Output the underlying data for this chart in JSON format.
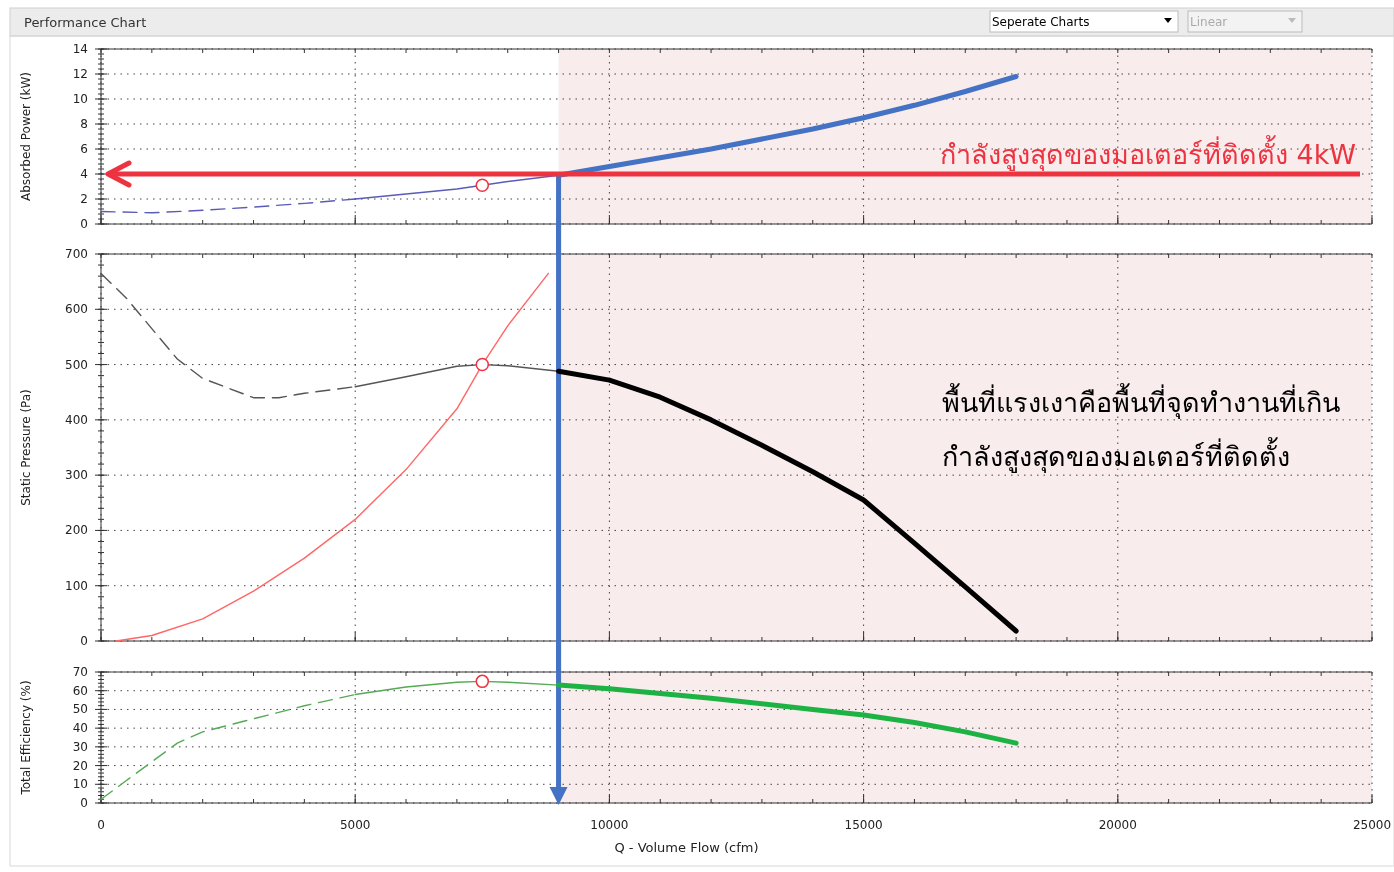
{
  "chart_data": [
    {
      "type": "line",
      "title": "Performance Chart",
      "annotations": [
        "Seperate Charts",
        "Linear"
      ],
      "ylabel": "Absorbed Power (kW)",
      "xlim": [
        0,
        25000
      ],
      "xticks": [
        0,
        5000,
        10000,
        15000,
        20000,
        25000
      ],
      "ylim": [
        0,
        14
      ],
      "yticks": [
        0,
        2,
        4,
        6,
        8,
        10,
        12,
        14
      ],
      "grid": true,
      "tick_labels": "y",
      "bands": [
        {
          "axis": "x",
          "from": 9000,
          "to": 25000,
          "color": "#f9ecec"
        }
      ],
      "ref_lines": [
        {
          "axis": "y",
          "value": 4,
          "label": "กำลังสูงสุดของมอเตอร์ที่ติดตั้ง 4kW",
          "color": "#ee3340"
        },
        {
          "axis": "x",
          "value": 9000,
          "color": "#4472c4"
        }
      ],
      "series": [
        {
          "color": "#5a5ab8",
          "line_style": "dashed",
          "x": [
            0,
            1000,
            2000,
            3000,
            4000,
            5000
          ],
          "values": [
            1.0,
            0.9,
            1.1,
            1.35,
            1.65,
            2.0
          ]
        },
        {
          "color": "#5a5ab8",
          "line_style": "solid",
          "x": [
            5000,
            6000,
            7000,
            7500,
            8000,
            9000
          ],
          "values": [
            2.0,
            2.4,
            2.8,
            3.1,
            3.4,
            3.9
          ]
        },
        {
          "color": "#4472c4",
          "line_style": "solid",
          "x": [
            9000,
            10000,
            12000,
            14000,
            15000,
            16000,
            17000,
            18000
          ],
          "values": [
            3.9,
            4.6,
            6.0,
            7.6,
            8.5,
            9.5,
            10.6,
            11.8
          ]
        },
        {
          "type": "scatter",
          "marker": "circle",
          "color": "#ee3340",
          "x": [
            7500
          ],
          "values": [
            3.1
          ]
        }
      ]
    },
    {
      "type": "line",
      "ylabel": "Static Pressure (Pa)",
      "annotations": [
        "พื้นที่แรงเงาคือพื้นที่จุดทำงานที่เกิน",
        "กำลังสูงสุดของมอเตอร์ที่ติดตั้ง"
      ],
      "xlim": [
        0,
        25000
      ],
      "xticks": [
        0,
        5000,
        10000,
        15000,
        20000,
        25000
      ],
      "ylim": [
        0,
        700
      ],
      "yticks": [
        0,
        100,
        200,
        300,
        400,
        500,
        600,
        700
      ],
      "grid": true,
      "tick_labels": "y",
      "bands": [
        {
          "axis": "x",
          "from": 9000,
          "to": 25000,
          "color": "#f9ecec"
        }
      ],
      "ref_lines": [
        {
          "axis": "x",
          "value": 9000,
          "color": "#4472c4"
        }
      ],
      "series": [
        {
          "color": "#ff6666",
          "line_style": "solid",
          "x": [
            300,
            1000,
            2000,
            3000,
            4000,
            5000,
            6000,
            7000,
            7500,
            8000,
            8800
          ],
          "values": [
            0,
            10,
            40,
            90,
            150,
            220,
            310,
            420,
            500,
            570,
            665
          ]
        },
        {
          "color": "#555555",
          "line_style": "dashed",
          "x": [
            0,
            500,
            1000,
            1500,
            2000,
            3000,
            3500,
            4000,
            5000
          ],
          "values": [
            665,
            620,
            565,
            510,
            475,
            440,
            440,
            448,
            460
          ]
        },
        {
          "color": "#555555",
          "line_style": "solid",
          "x": [
            5000,
            6000,
            7000,
            7500,
            8000,
            9000
          ],
          "values": [
            460,
            478,
            497,
            500,
            498,
            488
          ]
        },
        {
          "color": "#000000",
          "line_style": "solid",
          "x": [
            9000,
            10000,
            11000,
            12000,
            13000,
            14000,
            15000,
            16000,
            17000,
            18000
          ],
          "values": [
            488,
            472,
            441,
            400,
            354,
            306,
            255,
            177,
            98,
            18
          ]
        },
        {
          "type": "scatter",
          "marker": "circle",
          "color": "#ee3340",
          "x": [
            7500
          ],
          "values": [
            500
          ]
        }
      ]
    },
    {
      "type": "line",
      "xlabel": "Q - Volume Flow (cfm)",
      "ylabel": "Total Efficiency (%)",
      "xlim": [
        0,
        25000
      ],
      "xticks": [
        0,
        5000,
        10000,
        15000,
        20000,
        25000
      ],
      "ylim": [
        0,
        70
      ],
      "yticks": [
        0,
        10,
        20,
        30,
        40,
        50,
        60,
        70
      ],
      "grid": true,
      "bands": [
        {
          "axis": "x",
          "from": 9000,
          "to": 25000,
          "color": "#f9ecec"
        }
      ],
      "ref_lines": [
        {
          "axis": "x",
          "value": 9000,
          "color": "#4472c4"
        }
      ],
      "series": [
        {
          "color": "#55aa55",
          "line_style": "dashed",
          "x": [
            0,
            500,
            1000,
            1500,
            2000,
            3000,
            4000,
            5000
          ],
          "values": [
            2,
            12,
            22,
            32,
            38,
            45,
            52,
            58
          ]
        },
        {
          "color": "#55aa55",
          "line_style": "solid",
          "x": [
            5000,
            6000,
            7000,
            7500,
            8000,
            9000
          ],
          "values": [
            58,
            62,
            64.5,
            65,
            64.5,
            63
          ]
        },
        {
          "color": "#1db344",
          "line_style": "solid",
          "x": [
            9000,
            10000,
            12000,
            14000,
            15000,
            16000,
            17000,
            18000
          ],
          "values": [
            63,
            61,
            56,
            50,
            47,
            43,
            38,
            32
          ]
        },
        {
          "type": "scatter",
          "marker": "circle",
          "color": "#ee3340",
          "x": [
            7500
          ],
          "values": [
            65
          ]
        }
      ]
    }
  ]
}
